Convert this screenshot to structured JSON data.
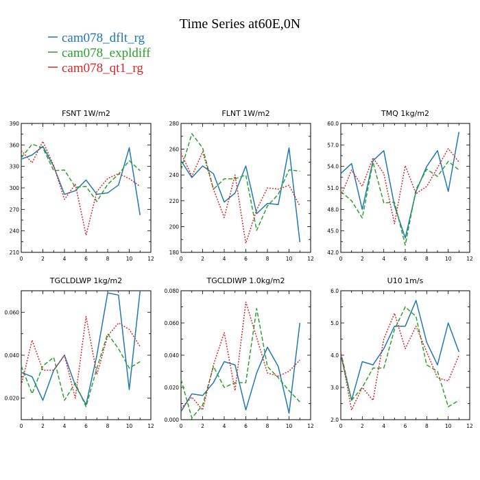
{
  "figure": {
    "title": "Time Series at60E,0N"
  },
  "legend": [
    {
      "name": "cam078_dflt_rg",
      "color": "#1f77b4",
      "dash": "solid"
    },
    {
      "name": "cam078_expldiff",
      "color": "#2ca02c",
      "dash": "dashed"
    },
    {
      "name": "cam078_qt1_rg",
      "color": "#d62728",
      "dash": "dotted"
    }
  ],
  "chart_data": [
    {
      "type": "line",
      "title": "FSNT   1W/m2",
      "x": [
        0,
        1,
        2,
        3,
        4,
        5,
        6,
        7,
        8,
        9,
        10,
        11
      ],
      "xlim": [
        0,
        12
      ],
      "xticks": [
        0,
        2,
        4,
        6,
        8,
        10,
        12
      ],
      "ylim": [
        210,
        390
      ],
      "yticks": [
        210,
        240,
        270,
        300,
        330,
        360,
        390
      ],
      "yticklabels": [
        "210",
        "240",
        "270",
        "300",
        "330",
        "360",
        "390"
      ],
      "series": [
        {
          "name": "cam078_dflt_rg",
          "values": [
            340,
            346,
            358,
            330,
            291,
            296,
            311,
            291,
            293,
            304,
            356,
            262
          ]
        },
        {
          "name": "cam078_expldiff",
          "values": [
            342,
            361,
            356,
            324,
            325,
            301,
            302,
            281,
            305,
            319,
            338,
            324
          ]
        },
        {
          "name": "cam078_qt1_rg",
          "values": [
            352,
            335,
            365,
            331,
            284,
            305,
            234,
            295,
            313,
            320,
            313,
            302
          ]
        }
      ]
    },
    {
      "type": "line",
      "title": "FLNT   1W/m2",
      "x": [
        0,
        1,
        2,
        3,
        4,
        5,
        6,
        7,
        8,
        9,
        10,
        11
      ],
      "xlim": [
        0,
        12
      ],
      "xticks": [
        0,
        2,
        4,
        6,
        8,
        10,
        12
      ],
      "ylim": [
        180,
        280
      ],
      "yticks": [
        180,
        200,
        220,
        240,
        260,
        280
      ],
      "yticklabels": [
        "180",
        "200",
        "220",
        "240",
        "260",
        "280"
      ],
      "series": [
        {
          "name": "cam078_dflt_rg",
          "values": [
            251,
            238,
            247,
            241,
            219,
            226,
            247,
            210,
            218,
            217,
            261,
            188
          ]
        },
        {
          "name": "cam078_expldiff",
          "values": [
            244,
            272,
            261,
            229,
            237,
            237,
            240,
            197,
            216,
            225,
            244,
            243
          ]
        },
        {
          "name": "cam078_qt1_rg",
          "values": [
            257,
            239,
            258,
            229,
            207,
            240,
            187,
            213,
            230,
            229,
            232,
            216
          ]
        }
      ]
    },
    {
      "type": "line",
      "title": "TMQ   1kg/m2",
      "x": [
        0,
        1,
        2,
        3,
        4,
        5,
        6,
        7,
        8,
        9,
        10,
        11
      ],
      "xlim": [
        0,
        12
      ],
      "xticks": [
        0,
        2,
        4,
        6,
        8,
        10,
        12
      ],
      "ylim": [
        42,
        60
      ],
      "yticks": [
        42,
        45,
        48,
        51,
        54,
        57,
        60
      ],
      "yticklabels": [
        "42.0",
        "45.0",
        "48.0",
        "51.0",
        "54.0",
        "57.0",
        "60.0"
      ],
      "series": [
        {
          "name": "cam078_dflt_rg",
          "values": [
            53.0,
            54.4,
            48.0,
            54.8,
            56.2,
            48.5,
            44.0,
            50.5,
            54.0,
            56.2,
            50.5,
            58.8
          ]
        },
        {
          "name": "cam078_expldiff",
          "values": [
            50.5,
            49.2,
            46.8,
            54.6,
            48.9,
            49.0,
            43.0,
            50.8,
            53.6,
            52.6,
            54.7,
            53.5
          ]
        },
        {
          "name": "cam078_qt1_rg",
          "values": [
            49.8,
            53.5,
            51.2,
            55.2,
            53.0,
            46.0,
            54.1,
            50.2,
            51.2,
            53.8,
            56.5,
            54.6
          ]
        }
      ]
    },
    {
      "type": "line",
      "title": "TGCLDLWP   1kg/m2",
      "x": [
        0,
        1,
        2,
        3,
        4,
        5,
        6,
        7,
        8,
        9,
        10,
        11
      ],
      "xlim": [
        0,
        12
      ],
      "xticks": [
        0,
        2,
        4,
        6,
        8,
        10,
        12
      ],
      "ylim": [
        0.01,
        0.07
      ],
      "yticks": [
        0.02,
        0.04,
        0.06
      ],
      "yticklabels": [
        "0.020",
        "0.040",
        "0.060"
      ],
      "series": [
        {
          "name": "cam078_dflt_rg",
          "values": [
            0.032,
            0.03,
            0.019,
            0.033,
            0.04,
            0.026,
            0.017,
            0.04,
            0.069,
            0.068,
            0.024,
            0.07
          ]
        },
        {
          "name": "cam078_expldiff",
          "values": [
            0.035,
            0.022,
            0.035,
            0.039,
            0.019,
            0.027,
            0.016,
            0.034,
            0.05,
            0.043,
            0.034,
            0.037
          ]
        },
        {
          "name": "cam078_qt1_rg",
          "values": [
            0.026,
            0.047,
            0.033,
            0.033,
            0.04,
            0.02,
            0.058,
            0.031,
            0.049,
            0.055,
            0.052,
            0.044
          ]
        }
      ]
    },
    {
      "type": "line",
      "title": "TGCLDIWP   1.0kg/m2",
      "x": [
        0,
        1,
        2,
        3,
        4,
        5,
        6,
        7,
        8,
        9,
        10,
        11
      ],
      "xlim": [
        0,
        12
      ],
      "xticks": [
        0,
        2,
        4,
        6,
        8,
        10,
        12
      ],
      "ylim": [
        0.0,
        0.08
      ],
      "yticks": [
        0.0,
        0.02,
        0.04,
        0.06,
        0.08
      ],
      "yticklabels": [
        "0.000",
        "0.020",
        "0.040",
        "0.060",
        "0.080"
      ],
      "series": [
        {
          "name": "cam078_dflt_rg",
          "values": [
            0.005,
            0.016,
            0.015,
            0.023,
            0.036,
            0.034,
            0.006,
            0.029,
            0.045,
            0.033,
            0.004,
            0.06
          ]
        },
        {
          "name": "cam078_expldiff",
          "values": [
            0.025,
            0.001,
            0.009,
            0.033,
            0.02,
            0.023,
            0.023,
            0.069,
            0.033,
            0.026,
            0.018,
            0.011
          ]
        },
        {
          "name": "cam078_qt1_rg",
          "values": [
            0.007,
            0.014,
            0.006,
            0.034,
            0.054,
            0.018,
            0.073,
            0.051,
            0.029,
            0.027,
            0.03,
            0.037
          ]
        }
      ]
    },
    {
      "type": "line",
      "title": "U10   1m/s",
      "x": [
        0,
        1,
        2,
        3,
        4,
        5,
        6,
        7,
        8,
        9,
        10,
        11
      ],
      "xlim": [
        0,
        12
      ],
      "xticks": [
        0,
        2,
        4,
        6,
        8,
        10,
        12
      ],
      "ylim": [
        2.0,
        6.0
      ],
      "yticks": [
        2.0,
        3.0,
        4.0,
        5.0,
        6.0
      ],
      "yticklabels": [
        "2.0",
        "3.0",
        "4.0",
        "5.0",
        "6.0"
      ],
      "series": [
        {
          "name": "cam078_dflt_rg",
          "values": [
            4.0,
            2.6,
            3.8,
            3.7,
            4.2,
            4.9,
            4.9,
            5.7,
            4.4,
            3.7,
            5.0,
            4.1
          ]
        },
        {
          "name": "cam078_expldiff",
          "values": [
            4.1,
            2.6,
            3.0,
            3.6,
            3.6,
            4.8,
            5.5,
            5.2,
            3.7,
            3.5,
            2.4,
            2.6
          ]
        },
        {
          "name": "cam078_qt1_rg",
          "values": [
            4.1,
            2.3,
            3.0,
            2.6,
            4.5,
            5.3,
            4.2,
            4.9,
            4.1,
            3.3,
            3.2,
            4.0
          ]
        }
      ]
    }
  ]
}
